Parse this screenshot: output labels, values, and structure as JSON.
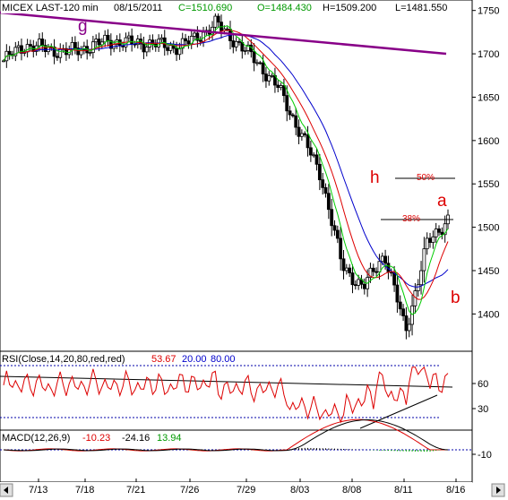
{
  "header": {
    "symbol": "MICEX LAST-120 min",
    "date": "08/15/2011",
    "close": "C=1510.690",
    "open": "O=1484.430",
    "high": "H=1509.200",
    "low": "L=1481.550"
  },
  "annotations": {
    "wave_g": "g",
    "wave_h": "h",
    "wave_a": "a",
    "wave_b": "b",
    "fib50": "50%",
    "fib38": "38%"
  },
  "rsi": {
    "label": "RSI(Close,14,20,80,red,red)",
    "value": "53.67",
    "low_level": "20.00",
    "high_level": "80.00",
    "ticks": [
      "60",
      "30"
    ]
  },
  "macd": {
    "label": "MACD(12,26,9)",
    "macd_value": "-10.23",
    "signal_value": "-24.16",
    "hist_value": "13.94",
    "ticks": [
      "-10"
    ]
  },
  "colors": {
    "price": "#000000",
    "ma_green": "#00cc00",
    "ma_red": "#dd0000",
    "ma_blue": "#0000cc",
    "trendline": "#880088",
    "annotation": "#dd0000",
    "rsi_line": "#dd0000",
    "rsi_levels": "#0000aa",
    "up_candle": "#00aa00"
  },
  "chart_data": {
    "type": "candlestick",
    "y_ticks": [
      1750,
      1700,
      1650,
      1600,
      1550,
      1500,
      1450,
      1400
    ],
    "y_range": [
      1357,
      1760
    ],
    "x_ticks": [
      "7/13",
      "7/18",
      "7/21",
      "7/26",
      "7/29",
      "8/03",
      "8/08",
      "8/11",
      "8/16"
    ],
    "close_points": [
      {
        "x": "7/11",
        "y": 1692
      },
      {
        "x": "7/13",
        "y": 1710
      },
      {
        "x": "7/15",
        "y": 1706
      },
      {
        "x": "7/18",
        "y": 1702
      },
      {
        "x": "7/20",
        "y": 1708
      },
      {
        "x": "7/21",
        "y": 1715
      },
      {
        "x": "7/22",
        "y": 1712
      },
      {
        "x": "7/26",
        "y": 1712
      },
      {
        "x": "7/27",
        "y": 1707
      },
      {
        "x": "7/28",
        "y": 1716
      },
      {
        "x": "7/29",
        "y": 1735
      },
      {
        "x": "8/01",
        "y": 1714
      },
      {
        "x": "8/02",
        "y": 1690
      },
      {
        "x": "8/03",
        "y": 1660
      },
      {
        "x": "8/04",
        "y": 1610
      },
      {
        "x": "8/05",
        "y": 1560
      },
      {
        "x": "8/08",
        "y": 1455
      },
      {
        "x": "8/09",
        "y": 1430
      },
      {
        "x": "8/10",
        "y": 1470
      },
      {
        "x": "8/11",
        "y": 1380
      },
      {
        "x": "8/12",
        "y": 1480
      },
      {
        "x": "8/15",
        "y": 1510
      }
    ],
    "fib_levels": [
      {
        "label": "50%",
        "value": 1554
      },
      {
        "label": "38%",
        "value": 1506
      }
    ],
    "rsi_range": [
      0,
      100
    ],
    "macd_range": [
      -50,
      5
    ]
  }
}
